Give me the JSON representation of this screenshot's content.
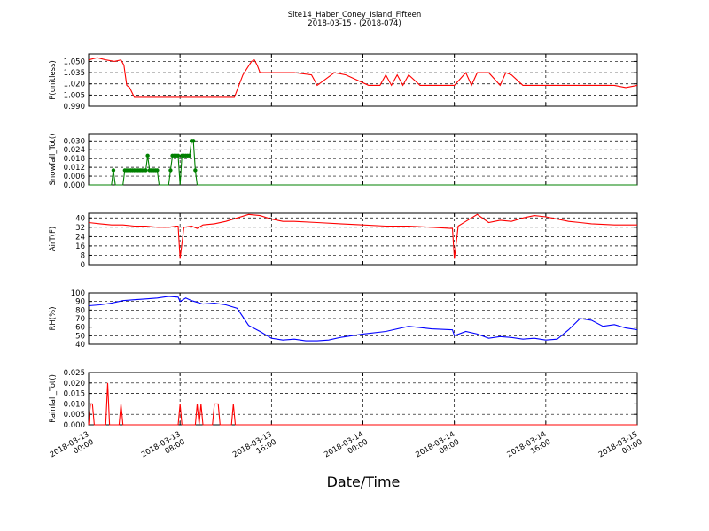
{
  "figure": {
    "title": "Site14_Haber_Coney_Island_Fifteen",
    "subtitle": "2018-03-15 - (2018-074)",
    "xlabel": "Date/Time"
  },
  "chart_data": [
    {
      "type": "line",
      "ylabel": "P(unitless)",
      "color": "#ff0000",
      "marker": "none",
      "ylim": [
        0.99,
        1.06
      ],
      "yticks": [
        "0.990",
        "1.005",
        "1.020",
        "1.035",
        "1.050"
      ],
      "ytick_values": [
        0.99,
        1.005,
        1.02,
        1.035,
        1.05
      ],
      "xlim": [
        "2018-03-13 00:00",
        "2018-03-15 00:00"
      ],
      "xticks": [
        "2018-03-13\n00:00",
        "2018-03-13\n08:00",
        "2018-03-13\n16:00",
        "2018-03-14\n00:00",
        "2018-03-14\n08:00",
        "2018-03-14\n16:00",
        "2018-03-15\n00:00"
      ],
      "grid": true,
      "x": [
        "2018-03-13 00:00",
        "2018-03-13 00:45",
        "2018-03-13 01:30",
        "2018-03-13 02:15",
        "2018-03-13 02:50",
        "2018-03-13 03:05",
        "2018-03-13 03:20",
        "2018-03-13 03:35",
        "2018-03-13 04:00",
        "2018-03-13 08:00",
        "2018-03-13 12:45",
        "2018-03-13 13:30",
        "2018-03-13 14:15",
        "2018-03-13 14:30",
        "2018-03-13 14:45",
        "2018-03-13 15:00",
        "2018-03-13 16:30",
        "2018-03-13 18:00",
        "2018-03-13 19:30",
        "2018-03-13 20:00",
        "2018-03-13 21:30",
        "2018-03-13 22:30",
        "2018-03-14 00:30",
        "2018-03-14 01:30",
        "2018-03-14 02:00",
        "2018-03-14 02:30",
        "2018-03-14 03:00",
        "2018-03-14 03:30",
        "2018-03-14 04:00",
        "2018-03-14 05:00",
        "2018-03-14 06:00",
        "2018-03-14 07:00",
        "2018-03-14 08:00",
        "2018-03-14 09:00",
        "2018-03-14 09:30",
        "2018-03-14 10:00",
        "2018-03-14 11:00",
        "2018-03-14 12:00",
        "2018-03-14 12:30",
        "2018-03-14 13:00",
        "2018-03-14 14:00",
        "2018-03-14 15:00",
        "2018-03-14 16:00",
        "2018-03-14 17:00",
        "2018-03-14 18:00",
        "2018-03-14 19:00",
        "2018-03-14 20:00",
        "2018-03-14 21:00",
        "2018-03-14 22:00",
        "2018-03-14 23:00",
        "2018-03-15 00:00"
      ],
      "y": [
        1.052,
        1.055,
        1.052,
        1.05,
        1.052,
        1.045,
        1.018,
        1.015,
        1.002,
        1.002,
        1.002,
        1.032,
        1.05,
        1.052,
        1.045,
        1.035,
        1.035,
        1.035,
        1.032,
        1.018,
        1.035,
        1.032,
        1.018,
        1.018,
        1.032,
        1.018,
        1.032,
        1.018,
        1.032,
        1.018,
        1.018,
        1.018,
        1.018,
        1.035,
        1.018,
        1.035,
        1.035,
        1.018,
        1.035,
        1.032,
        1.018,
        1.018,
        1.018,
        1.018,
        1.018,
        1.018,
        1.018,
        1.018,
        1.018,
        1.015,
        1.018
      ]
    },
    {
      "type": "line",
      "ylabel": "Snowfall_Tot()",
      "color": "#008000",
      "marker": "circle",
      "ylim": [
        0.0,
        0.035
      ],
      "yticks": [
        "0.000",
        "0.006",
        "0.012",
        "0.018",
        "0.024",
        "0.030"
      ],
      "ytick_values": [
        0.0,
        0.006,
        0.012,
        0.018,
        0.024,
        0.03
      ],
      "xlim": [
        "2018-03-13 00:00",
        "2018-03-15 00:00"
      ],
      "grid": true,
      "x": [
        "2018-03-13 00:00",
        "2018-03-13 02:00",
        "2018-03-13 02:10",
        "2018-03-13 02:20",
        "2018-03-13 03:00",
        "2018-03-13 03:10",
        "2018-03-13 03:20",
        "2018-03-13 03:30",
        "2018-03-13 03:40",
        "2018-03-13 03:50",
        "2018-03-13 04:00",
        "2018-03-13 04:10",
        "2018-03-13 04:20",
        "2018-03-13 04:30",
        "2018-03-13 04:40",
        "2018-03-13 04:50",
        "2018-03-13 05:00",
        "2018-03-13 05:10",
        "2018-03-13 05:20",
        "2018-03-13 05:30",
        "2018-03-13 05:40",
        "2018-03-13 05:50",
        "2018-03-13 06:00",
        "2018-03-13 06:10",
        "2018-03-13 06:20",
        "2018-03-13 06:30",
        "2018-03-13 07:00",
        "2018-03-13 07:10",
        "2018-03-13 07:20",
        "2018-03-13 07:30",
        "2018-03-13 07:40",
        "2018-03-13 07:50",
        "2018-03-13 08:00",
        "2018-03-13 08:10",
        "2018-03-13 08:20",
        "2018-03-13 08:30",
        "2018-03-13 08:40",
        "2018-03-13 08:50",
        "2018-03-13 09:00",
        "2018-03-13 09:10",
        "2018-03-13 09:20",
        "2018-03-13 09:30",
        "2018-03-13 09:40",
        "2018-03-13 10:00",
        "2018-03-13 12:00",
        "2018-03-14 00:00",
        "2018-03-14 12:00",
        "2018-03-15 00:00"
      ],
      "y": [
        0,
        0,
        0.01,
        0,
        0,
        0.01,
        0.01,
        0.01,
        0.01,
        0.01,
        0.01,
        0.01,
        0.01,
        0.01,
        0.01,
        0.01,
        0.01,
        0.02,
        0.01,
        0.01,
        0.01,
        0.01,
        0.01,
        0,
        0,
        0,
        0,
        0.01,
        0.02,
        0.02,
        0.02,
        0.02,
        0,
        0.02,
        0.02,
        0.02,
        0.02,
        0.02,
        0.03,
        0.03,
        0.01,
        0,
        0,
        0,
        0,
        0,
        0,
        0
      ]
    },
    {
      "type": "line",
      "ylabel": "AirT(F)",
      "color": "#ff0000",
      "marker": "none",
      "ylim": [
        0,
        44
      ],
      "yticks": [
        "0",
        "8",
        "16",
        "24",
        "32",
        "40"
      ],
      "ytick_values": [
        0,
        8,
        16,
        24,
        32,
        40
      ],
      "xlim": [
        "2018-03-13 00:00",
        "2018-03-15 00:00"
      ],
      "grid": true,
      "x": [
        "2018-03-13 00:00",
        "2018-03-13 01:00",
        "2018-03-13 02:00",
        "2018-03-13 03:00",
        "2018-03-13 04:00",
        "2018-03-13 05:00",
        "2018-03-13 06:00",
        "2018-03-13 07:00",
        "2018-03-13 07:40",
        "2018-03-13 07:50",
        "2018-03-13 08:00",
        "2018-03-13 08:20",
        "2018-03-13 09:00",
        "2018-03-13 09:30",
        "2018-03-13 10:00",
        "2018-03-13 11:00",
        "2018-03-13 12:00",
        "2018-03-13 13:00",
        "2018-03-13 14:00",
        "2018-03-13 15:00",
        "2018-03-13 16:00",
        "2018-03-13 17:00",
        "2018-03-13 18:00",
        "2018-03-13 20:00",
        "2018-03-13 22:00",
        "2018-03-14 00:00",
        "2018-03-14 02:00",
        "2018-03-14 04:00",
        "2018-03-14 06:00",
        "2018-03-14 07:40",
        "2018-03-14 07:50",
        "2018-03-14 08:00",
        "2018-03-14 08:20",
        "2018-03-14 09:00",
        "2018-03-14 10:00",
        "2018-03-14 11:00",
        "2018-03-14 12:00",
        "2018-03-14 13:00",
        "2018-03-14 14:00",
        "2018-03-14 15:00",
        "2018-03-14 16:00",
        "2018-03-14 17:00",
        "2018-03-14 18:00",
        "2018-03-14 19:00",
        "2018-03-14 20:00",
        "2018-03-14 22:00",
        "2018-03-15 00:00"
      ],
      "y": [
        36,
        35,
        34,
        34,
        33,
        33,
        32,
        32,
        33,
        33,
        5,
        32,
        33,
        31,
        34,
        35,
        37,
        40,
        43,
        42,
        39,
        37,
        37,
        36,
        35,
        34,
        33,
        33,
        32,
        31,
        31,
        5,
        33,
        37,
        43,
        36,
        38,
        37,
        40,
        42,
        41,
        39,
        37,
        36,
        35,
        34,
        34
      ]
    },
    {
      "type": "line",
      "ylabel": "RH(%)",
      "color": "#0000ff",
      "marker": "none",
      "ylim": [
        40,
        100
      ],
      "yticks": [
        "40",
        "50",
        "60",
        "70",
        "80",
        "90",
        "100"
      ],
      "ytick_values": [
        40,
        50,
        60,
        70,
        80,
        90,
        100
      ],
      "xlim": [
        "2018-03-13 00:00",
        "2018-03-15 00:00"
      ],
      "grid": true,
      "x": [
        "2018-03-13 00:00",
        "2018-03-13 01:00",
        "2018-03-13 02:00",
        "2018-03-13 03:00",
        "2018-03-13 04:00",
        "2018-03-13 05:00",
        "2018-03-13 06:00",
        "2018-03-13 07:00",
        "2018-03-13 07:50",
        "2018-03-13 08:00",
        "2018-03-13 08:30",
        "2018-03-13 09:00",
        "2018-03-13 10:00",
        "2018-03-13 11:00",
        "2018-03-13 12:00",
        "2018-03-13 13:00",
        "2018-03-13 14:00",
        "2018-03-13 15:00",
        "2018-03-13 16:00",
        "2018-03-13 17:00",
        "2018-03-13 18:00",
        "2018-03-13 19:00",
        "2018-03-13 20:00",
        "2018-03-13 21:00",
        "2018-03-13 22:00",
        "2018-03-14 00:00",
        "2018-03-14 02:00",
        "2018-03-14 04:00",
        "2018-03-14 06:00",
        "2018-03-14 07:50",
        "2018-03-14 08:00",
        "2018-03-14 09:00",
        "2018-03-14 10:00",
        "2018-03-14 11:00",
        "2018-03-14 12:00",
        "2018-03-14 13:00",
        "2018-03-14 14:00",
        "2018-03-14 15:00",
        "2018-03-14 16:00",
        "2018-03-14 17:00",
        "2018-03-14 18:00",
        "2018-03-14 19:00",
        "2018-03-14 20:00",
        "2018-03-14 21:00",
        "2018-03-14 22:00",
        "2018-03-14 23:00",
        "2018-03-15 00:00"
      ],
      "y": [
        85,
        86,
        88,
        91,
        92,
        93,
        94,
        96,
        95,
        90,
        94,
        91,
        87,
        88,
        86,
        82,
        62,
        55,
        47,
        45,
        46,
        44,
        44,
        45,
        48,
        52,
        55,
        61,
        58,
        57,
        50,
        55,
        52,
        47,
        49,
        48,
        46,
        47,
        45,
        46,
        57,
        70,
        68,
        61,
        63,
        59,
        57
      ]
    },
    {
      "type": "line",
      "ylabel": "Rainfall_Tot()",
      "color": "#ff0000",
      "marker": "none",
      "ylim": [
        0.0,
        0.025
      ],
      "yticks": [
        "0.000",
        "0.005",
        "0.010",
        "0.015",
        "0.020",
        "0.025"
      ],
      "ytick_values": [
        0.0,
        0.005,
        0.01,
        0.015,
        0.02,
        0.025
      ],
      "xlim": [
        "2018-03-13 00:00",
        "2018-03-15 00:00"
      ],
      "grid": true,
      "x": [
        "2018-03-13 00:00",
        "2018-03-13 00:10",
        "2018-03-13 00:20",
        "2018-03-13 00:30",
        "2018-03-13 01:30",
        "2018-03-13 01:40",
        "2018-03-13 01:50",
        "2018-03-13 02:40",
        "2018-03-13 02:50",
        "2018-03-13 03:00",
        "2018-03-13 07:50",
        "2018-03-13 08:00",
        "2018-03-13 08:10",
        "2018-03-13 09:20",
        "2018-03-13 09:30",
        "2018-03-13 09:40",
        "2018-03-13 09:50",
        "2018-03-13 10:00",
        "2018-03-13 10:50",
        "2018-03-13 11:00",
        "2018-03-13 11:10",
        "2018-03-13 11:20",
        "2018-03-13 11:30",
        "2018-03-13 12:30",
        "2018-03-13 12:40",
        "2018-03-13 12:50",
        "2018-03-15 00:00"
      ],
      "y": [
        0,
        0.01,
        0.01,
        0,
        0,
        0.02,
        0,
        0,
        0.01,
        0,
        0,
        0.01,
        0,
        0,
        0.01,
        0,
        0.01,
        0,
        0,
        0.01,
        0.01,
        0.01,
        0,
        0,
        0.01,
        0,
        0
      ]
    }
  ]
}
